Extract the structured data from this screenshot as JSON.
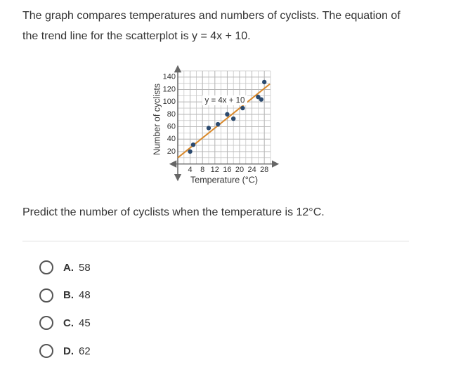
{
  "question": {
    "text": "The graph compares temperatures and numbers of cyclists. The equation of the trend line for the scatterplot is y = 4x + 10.",
    "prompt": "Predict the number of cyclists when the temperature is 12°C.",
    "options": [
      {
        "letter": "A.",
        "text": "58"
      },
      {
        "letter": "B.",
        "text": "48"
      },
      {
        "letter": "C.",
        "text": "45"
      },
      {
        "letter": "D.",
        "text": "62"
      }
    ]
  },
  "chart_data": {
    "type": "scatter",
    "x_label": "Temperature (°C)",
    "y_label": "Number of cyclists",
    "x": [
      4,
      5,
      10,
      13,
      16,
      18,
      21,
      26,
      27,
      28
    ],
    "series": [
      {
        "color": "#2b4a6f",
        "values": [
          20,
          31,
          58,
          64,
          80,
          73,
          90,
          108,
          104,
          132
        ]
      }
    ],
    "trend_line": {
      "label": "y = 4x + 10",
      "slope": 4,
      "intercept": 10,
      "color": "#d9892b"
    },
    "xlim": [
      0,
      30
    ],
    "ylim": [
      0,
      150
    ],
    "xticks": [
      4,
      8,
      12,
      16,
      20,
      24,
      28
    ],
    "yticks": [
      20,
      40,
      60,
      80,
      100,
      120,
      140
    ],
    "grid": true
  }
}
